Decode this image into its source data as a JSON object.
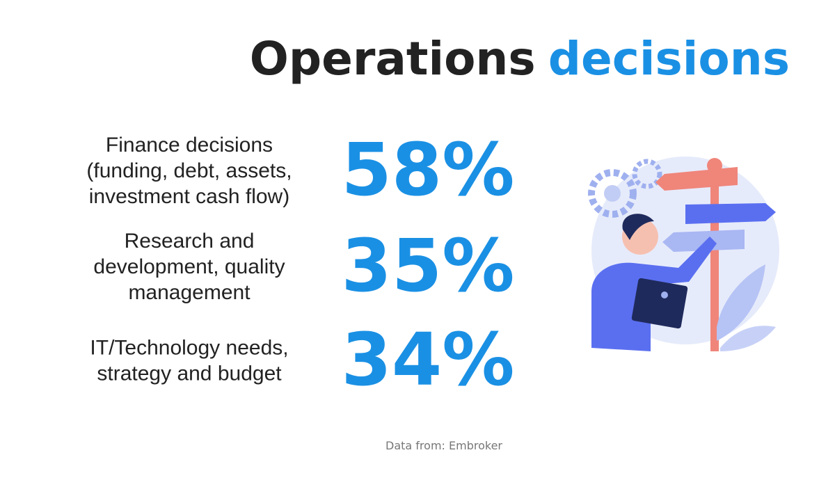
{
  "header": {
    "title_dark": "Operations",
    "title_accent": "decisions"
  },
  "items": [
    {
      "label": [
        "Finance decisions",
        "(funding, debt, assets,",
        "investment cash flow)"
      ],
      "value": "58%"
    },
    {
      "label": [
        "Research and",
        "development, quality",
        "management"
      ],
      "value": "35%"
    },
    {
      "label": [
        "IT/Technology needs,",
        "strategy and budget"
      ],
      "value": "34%"
    }
  ],
  "footer": {
    "source": "Data from: Embroker"
  }
}
